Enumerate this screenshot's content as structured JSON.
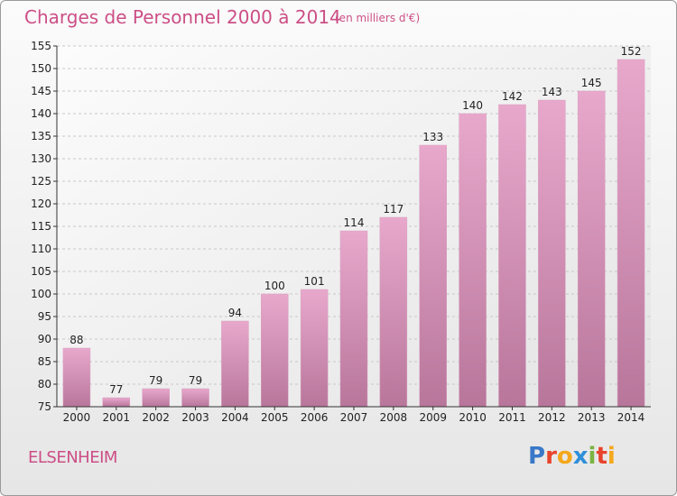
{
  "chart_data": {
    "type": "bar",
    "title": "Charges de Personnel 2000 à 2014",
    "subtitle": "(en milliers d'€)",
    "categories": [
      "2000",
      "2001",
      "2002",
      "2003",
      "2004",
      "2005",
      "2006",
      "2007",
      "2008",
      "2009",
      "2010",
      "2011",
      "2012",
      "2013",
      "2014"
    ],
    "values": [
      88,
      77,
      79,
      79,
      94,
      100,
      101,
      114,
      117,
      133,
      140,
      142,
      143,
      145,
      152
    ],
    "ylim": [
      75,
      155
    ],
    "yticks": [
      75,
      80,
      85,
      90,
      95,
      100,
      105,
      110,
      115,
      120,
      125,
      130,
      135,
      140,
      145,
      150,
      155
    ],
    "grid": true,
    "xlabel": "",
    "ylabel": "",
    "colors": {
      "bar_light": "#e8a8cc",
      "bar_dark": "#b8769b",
      "text_accent": "#cc4f86",
      "axis": "#333333"
    }
  },
  "commune": "ELSENHEIM",
  "logo": {
    "text": "Proxiti",
    "letters": [
      {
        "ch": "P",
        "color": "#3a78c8"
      },
      {
        "ch": "r",
        "color": "#e8432c"
      },
      {
        "ch": "o",
        "color": "#f4a81c"
      },
      {
        "ch": "x",
        "color": "#2f8fd8"
      },
      {
        "ch": "i",
        "color": "#7cb342"
      },
      {
        "ch": "t",
        "color": "#e8432c"
      },
      {
        "ch": "i",
        "color": "#f4a81c"
      }
    ]
  }
}
